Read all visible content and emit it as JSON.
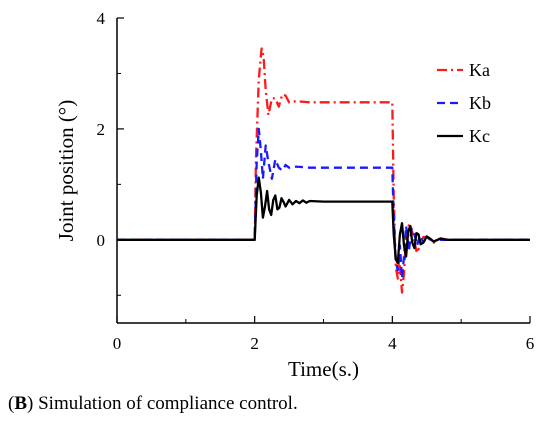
{
  "chart_data": {
    "type": "line",
    "xlabel": "Time(s.)",
    "ylabel": "Joint position (°)",
    "xlim": [
      0,
      6
    ],
    "ylim": [
      -1.5,
      4
    ],
    "xticks": [
      0,
      2,
      4,
      6
    ],
    "yticks": [
      0,
      2,
      4
    ],
    "x_tick_labels": [
      "0",
      "2",
      "4",
      "6"
    ],
    "y_tick_labels": [
      "0",
      "2",
      "4"
    ],
    "grid": false,
    "legend_position": "top-right",
    "series": [
      {
        "name": "Ka",
        "color": "#ff1a1a",
        "style": "dash-dot",
        "points": [
          [
            0,
            0
          ],
          [
            2.0,
            0
          ],
          [
            2.02,
            1.5
          ],
          [
            2.06,
            2.9
          ],
          [
            2.1,
            3.45
          ],
          [
            2.13,
            3.3
          ],
          [
            2.16,
            2.7
          ],
          [
            2.2,
            2.25
          ],
          [
            2.25,
            2.55
          ],
          [
            2.3,
            2.55
          ],
          [
            2.35,
            2.4
          ],
          [
            2.4,
            2.62
          ],
          [
            2.45,
            2.6
          ],
          [
            2.5,
            2.48
          ],
          [
            2.6,
            2.5
          ],
          [
            2.8,
            2.48
          ],
          [
            4.0,
            2.48
          ],
          [
            4.02,
            0.8
          ],
          [
            4.05,
            -0.5
          ],
          [
            4.08,
            -0.7
          ],
          [
            4.1,
            -0.3
          ],
          [
            4.14,
            -0.95
          ],
          [
            4.17,
            -0.6
          ],
          [
            4.2,
            0.1
          ],
          [
            4.25,
            0.3
          ],
          [
            4.3,
            0.1
          ],
          [
            4.35,
            -0.2
          ],
          [
            4.4,
            -0.15
          ],
          [
            4.45,
            0.05
          ],
          [
            4.5,
            0.05
          ],
          [
            4.6,
            -0.05
          ],
          [
            4.7,
            0.03
          ],
          [
            4.8,
            0
          ],
          [
            6.0,
            0
          ]
        ]
      },
      {
        "name": "Kb",
        "color": "#1a1aff",
        "style": "dash",
        "points": [
          [
            0,
            0
          ],
          [
            2.0,
            0
          ],
          [
            2.03,
            1.4
          ],
          [
            2.06,
            2.0
          ],
          [
            2.09,
            1.6
          ],
          [
            2.12,
            1.1
          ],
          [
            2.16,
            1.7
          ],
          [
            2.2,
            1.4
          ],
          [
            2.25,
            1.1
          ],
          [
            2.3,
            1.45
          ],
          [
            2.35,
            1.3
          ],
          [
            2.4,
            1.25
          ],
          [
            2.45,
            1.35
          ],
          [
            2.5,
            1.3
          ],
          [
            2.6,
            1.32
          ],
          [
            2.8,
            1.3
          ],
          [
            4.0,
            1.3
          ],
          [
            4.02,
            0.4
          ],
          [
            4.05,
            -0.4
          ],
          [
            4.08,
            -0.55
          ],
          [
            4.11,
            -0.1
          ],
          [
            4.14,
            -0.7
          ],
          [
            4.17,
            -0.3
          ],
          [
            4.2,
            0.25
          ],
          [
            4.24,
            -0.2
          ],
          [
            4.28,
            0.2
          ],
          [
            4.32,
            0.1
          ],
          [
            4.36,
            -0.1
          ],
          [
            4.4,
            0.08
          ],
          [
            4.45,
            -0.05
          ],
          [
            4.5,
            0.05
          ],
          [
            4.6,
            -0.03
          ],
          [
            4.7,
            0
          ],
          [
            6.0,
            0
          ]
        ]
      },
      {
        "name": "Kc",
        "color": "#000000",
        "style": "solid",
        "points": [
          [
            0,
            0
          ],
          [
            2.0,
            0
          ],
          [
            2.03,
            0.8
          ],
          [
            2.06,
            1.12
          ],
          [
            2.09,
            0.85
          ],
          [
            2.12,
            0.4
          ],
          [
            2.15,
            0.6
          ],
          [
            2.18,
            0.88
          ],
          [
            2.21,
            0.55
          ],
          [
            2.24,
            0.45
          ],
          [
            2.27,
            0.72
          ],
          [
            2.3,
            0.8
          ],
          [
            2.33,
            0.55
          ],
          [
            2.36,
            0.58
          ],
          [
            2.39,
            0.75
          ],
          [
            2.42,
            0.68
          ],
          [
            2.45,
            0.6
          ],
          [
            2.5,
            0.72
          ],
          [
            2.55,
            0.64
          ],
          [
            2.6,
            0.7
          ],
          [
            2.65,
            0.66
          ],
          [
            2.7,
            0.71
          ],
          [
            2.75,
            0.67
          ],
          [
            2.8,
            0.7
          ],
          [
            3.0,
            0.69
          ],
          [
            4.0,
            0.69
          ],
          [
            4.02,
            0.1
          ],
          [
            4.05,
            -0.35
          ],
          [
            4.08,
            -0.42
          ],
          [
            4.11,
            0.1
          ],
          [
            4.14,
            0.3
          ],
          [
            4.17,
            -0.1
          ],
          [
            4.2,
            -0.3
          ],
          [
            4.23,
            0.15
          ],
          [
            4.26,
            0.25
          ],
          [
            4.29,
            -0.05
          ],
          [
            4.32,
            -0.15
          ],
          [
            4.35,
            0.12
          ],
          [
            4.38,
            0.1
          ],
          [
            4.41,
            -0.08
          ],
          [
            4.45,
            -0.05
          ],
          [
            4.5,
            0.06
          ],
          [
            4.55,
            0.02
          ],
          [
            4.6,
            -0.03
          ],
          [
            4.7,
            0.02
          ],
          [
            4.8,
            0
          ],
          [
            6.0,
            0
          ]
        ]
      }
    ]
  },
  "caption": {
    "prefix": "(",
    "bold": "B",
    "text": ") Simulation of compliance control."
  }
}
